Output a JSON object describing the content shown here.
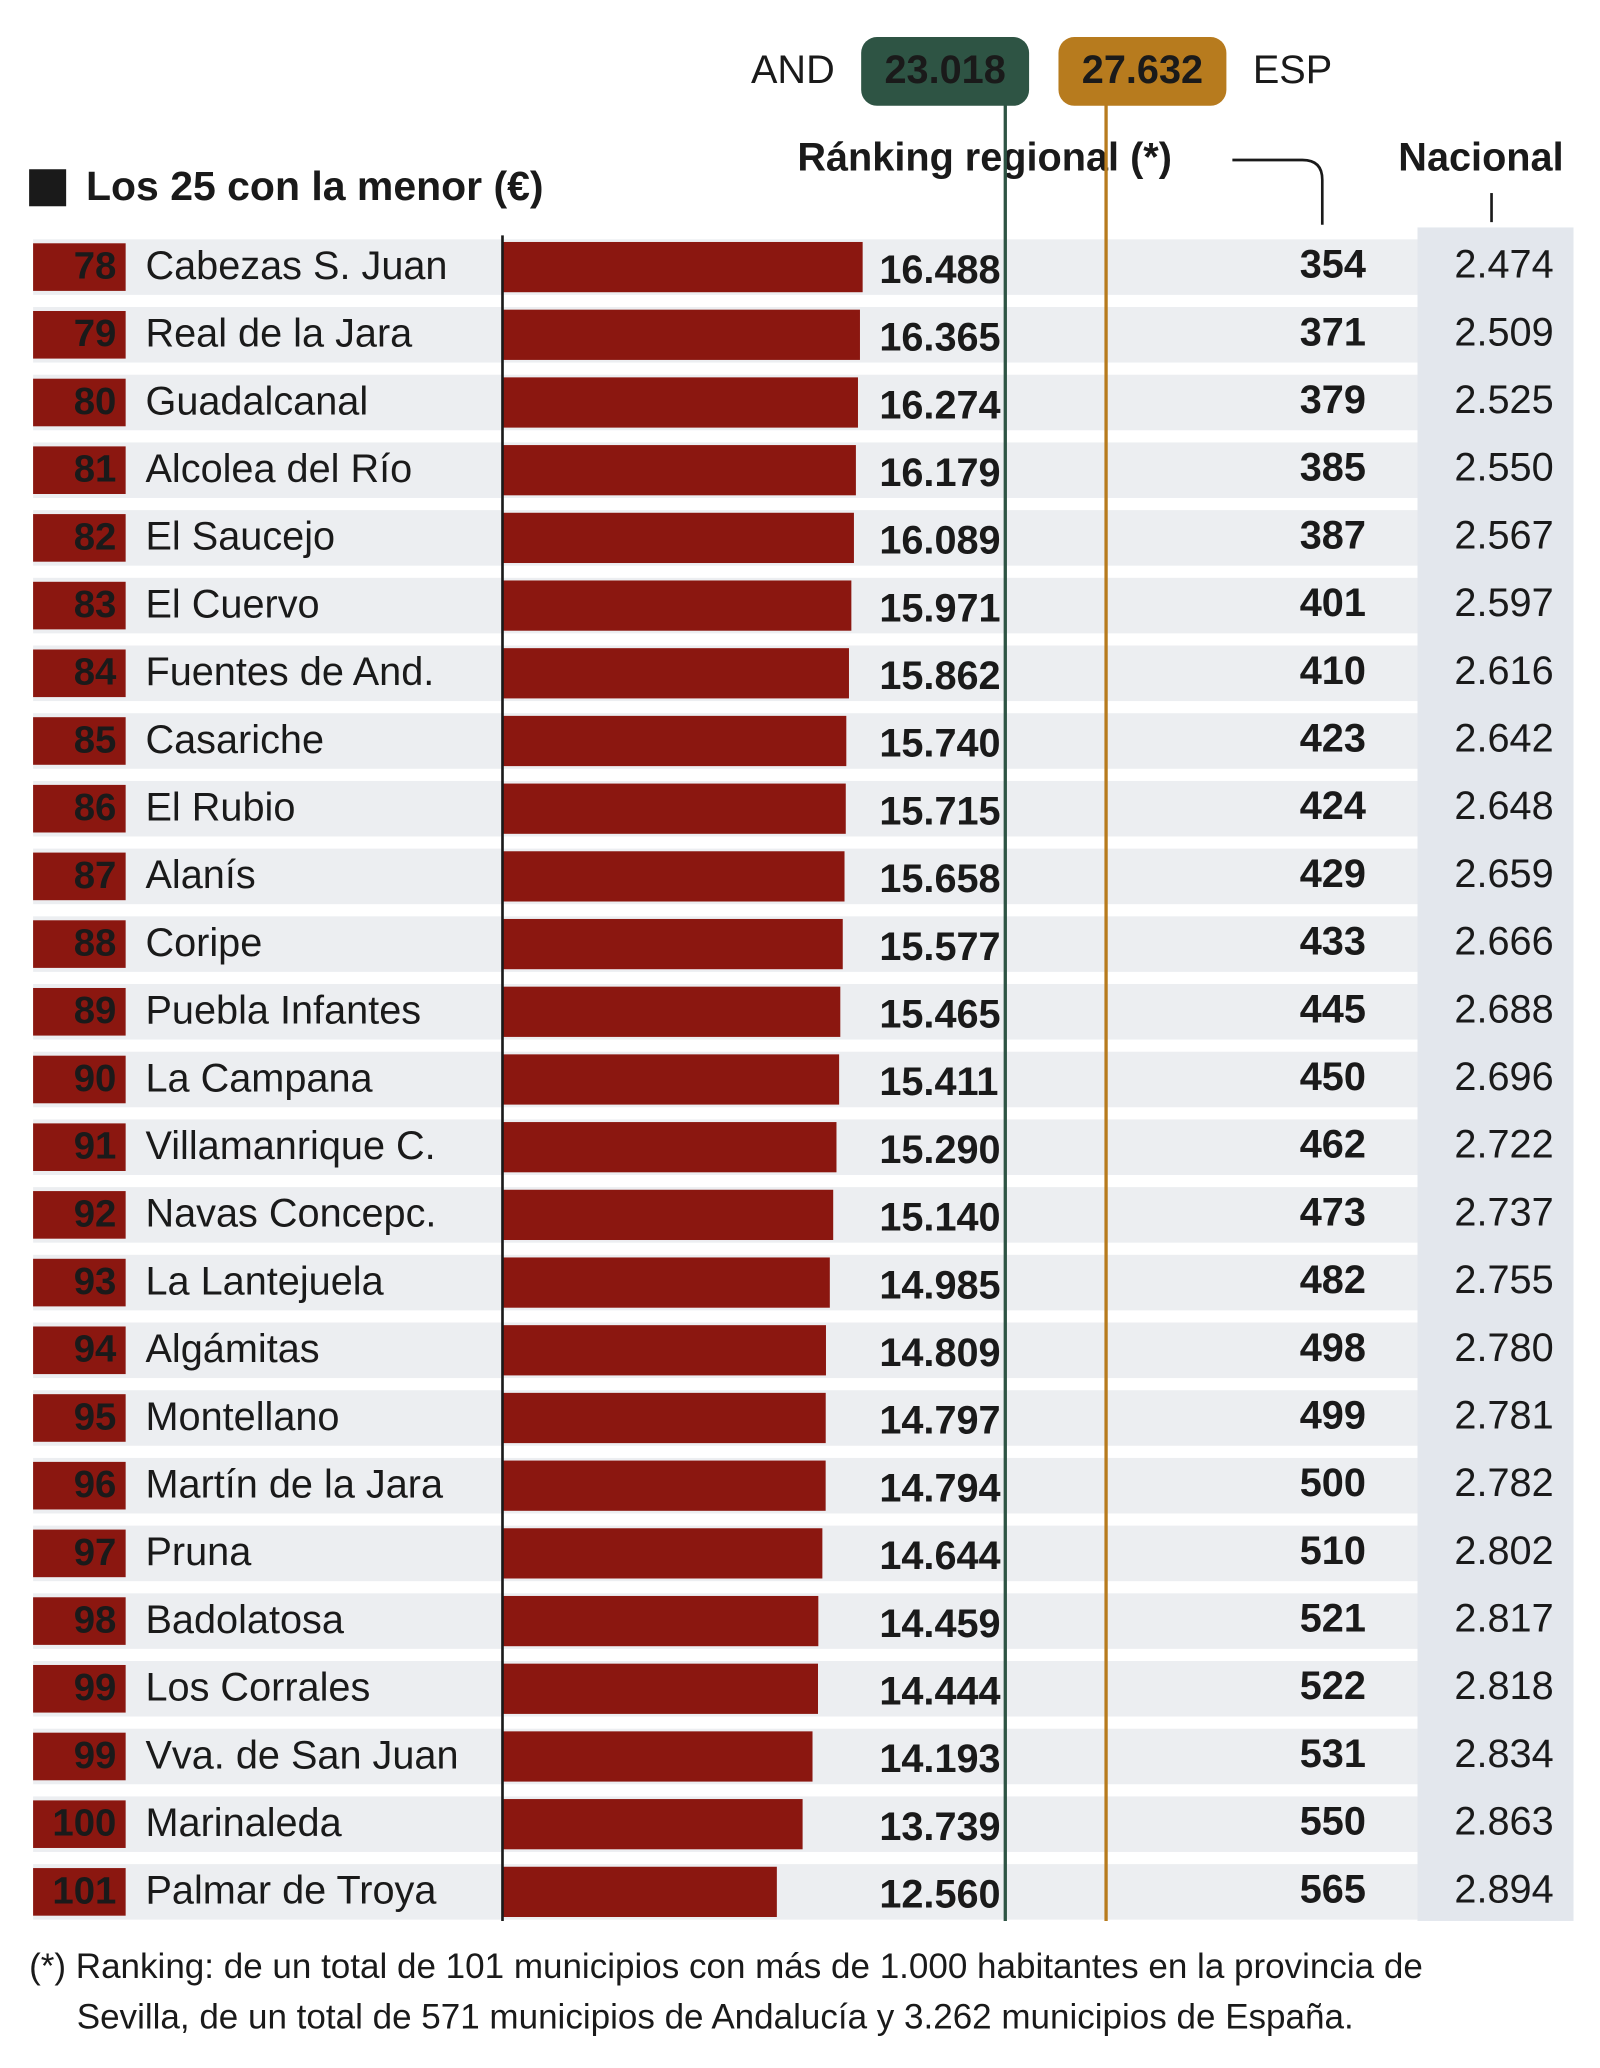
{
  "chart_data": {
    "type": "bar",
    "orientation": "horizontal",
    "title": "Los 25 con la menor (€)",
    "color": "#8b1710",
    "categories": [
      "Cabezas S. Juan",
      "Real de la Jara",
      "Guadalcanal",
      "Alcolea del Río",
      "El Saucejo",
      "El Cuervo",
      "Fuentes de And.",
      "Casariche",
      "El Rubio",
      "Alanís",
      "Coripe",
      "Puebla Infantes",
      "La Campana",
      "Villamanrique C.",
      "Navas Concepc.",
      "La Lantejuela",
      "Algámitas",
      "Montellano",
      "Martín de la Jara",
      "Pruna",
      "Badolatosa",
      "Los Corrales",
      "Vva. de San Juan",
      "Marinaleda",
      "Palmar de Troya"
    ],
    "values": [
      16488,
      16365,
      16274,
      16179,
      16089,
      15971,
      15862,
      15740,
      15715,
      15658,
      15577,
      15465,
      15411,
      15290,
      15140,
      14985,
      14809,
      14797,
      14794,
      14644,
      14459,
      14444,
      14193,
      13739,
      12560
    ],
    "value_labels": [
      "16.488",
      "16.365",
      "16.274",
      "16.179",
      "16.089",
      "15.971",
      "15.862",
      "15.740",
      "15.715",
      "15.658",
      "15.577",
      "15.465",
      "15.411",
      "15.290",
      "15.140",
      "14.985",
      "14.809",
      "14.797",
      "14.794",
      "14.644",
      "14.459",
      "14.444",
      "14.193",
      "13.739",
      "12.560"
    ],
    "reference_lines": [
      {
        "name": "AND",
        "value": 23018,
        "label": "23.018",
        "color": "#2e5444"
      },
      {
        "name": "ESP",
        "value": 27632,
        "label": "27.632",
        "color": "#b77b1e"
      }
    ],
    "columns": {
      "provincial_rank": {
        "values": [
          78,
          79,
          80,
          81,
          82,
          83,
          84,
          85,
          86,
          87,
          88,
          89,
          90,
          91,
          92,
          93,
          94,
          95,
          96,
          97,
          98,
          99,
          99,
          100,
          101
        ]
      },
      "regional_rank": {
        "title": "Ránking regional (*)",
        "values": [
          354,
          371,
          379,
          385,
          387,
          401,
          410,
          423,
          424,
          429,
          433,
          445,
          450,
          462,
          473,
          482,
          498,
          499,
          500,
          510,
          521,
          522,
          531,
          550,
          565
        ]
      },
      "national_rank": {
        "title": "Nacional",
        "values": [
          2474,
          2509,
          2525,
          2550,
          2567,
          2597,
          2616,
          2642,
          2648,
          2659,
          2666,
          2688,
          2696,
          2722,
          2737,
          2755,
          2780,
          2781,
          2782,
          2802,
          2817,
          2818,
          2834,
          2863,
          2894
        ],
        "value_labels": [
          "2.474",
          "2.509",
          "2.525",
          "2.550",
          "2.567",
          "2.597",
          "2.616",
          "2.642",
          "2.648",
          "2.659",
          "2.666",
          "2.688",
          "2.696",
          "2.722",
          "2.737",
          "2.755",
          "2.780",
          "2.781",
          "2.782",
          "2.802",
          "2.817",
          "2.818",
          "2.834",
          "2.863",
          "2.894"
        ]
      }
    },
    "footnote": [
      "(*) Ranking: de un total de 101 municipios con más de 1.000 habitantes en la provincia de",
      "Sevilla, de un total de 571 municipios de Andalucía y 3.262 municipios de España."
    ]
  }
}
